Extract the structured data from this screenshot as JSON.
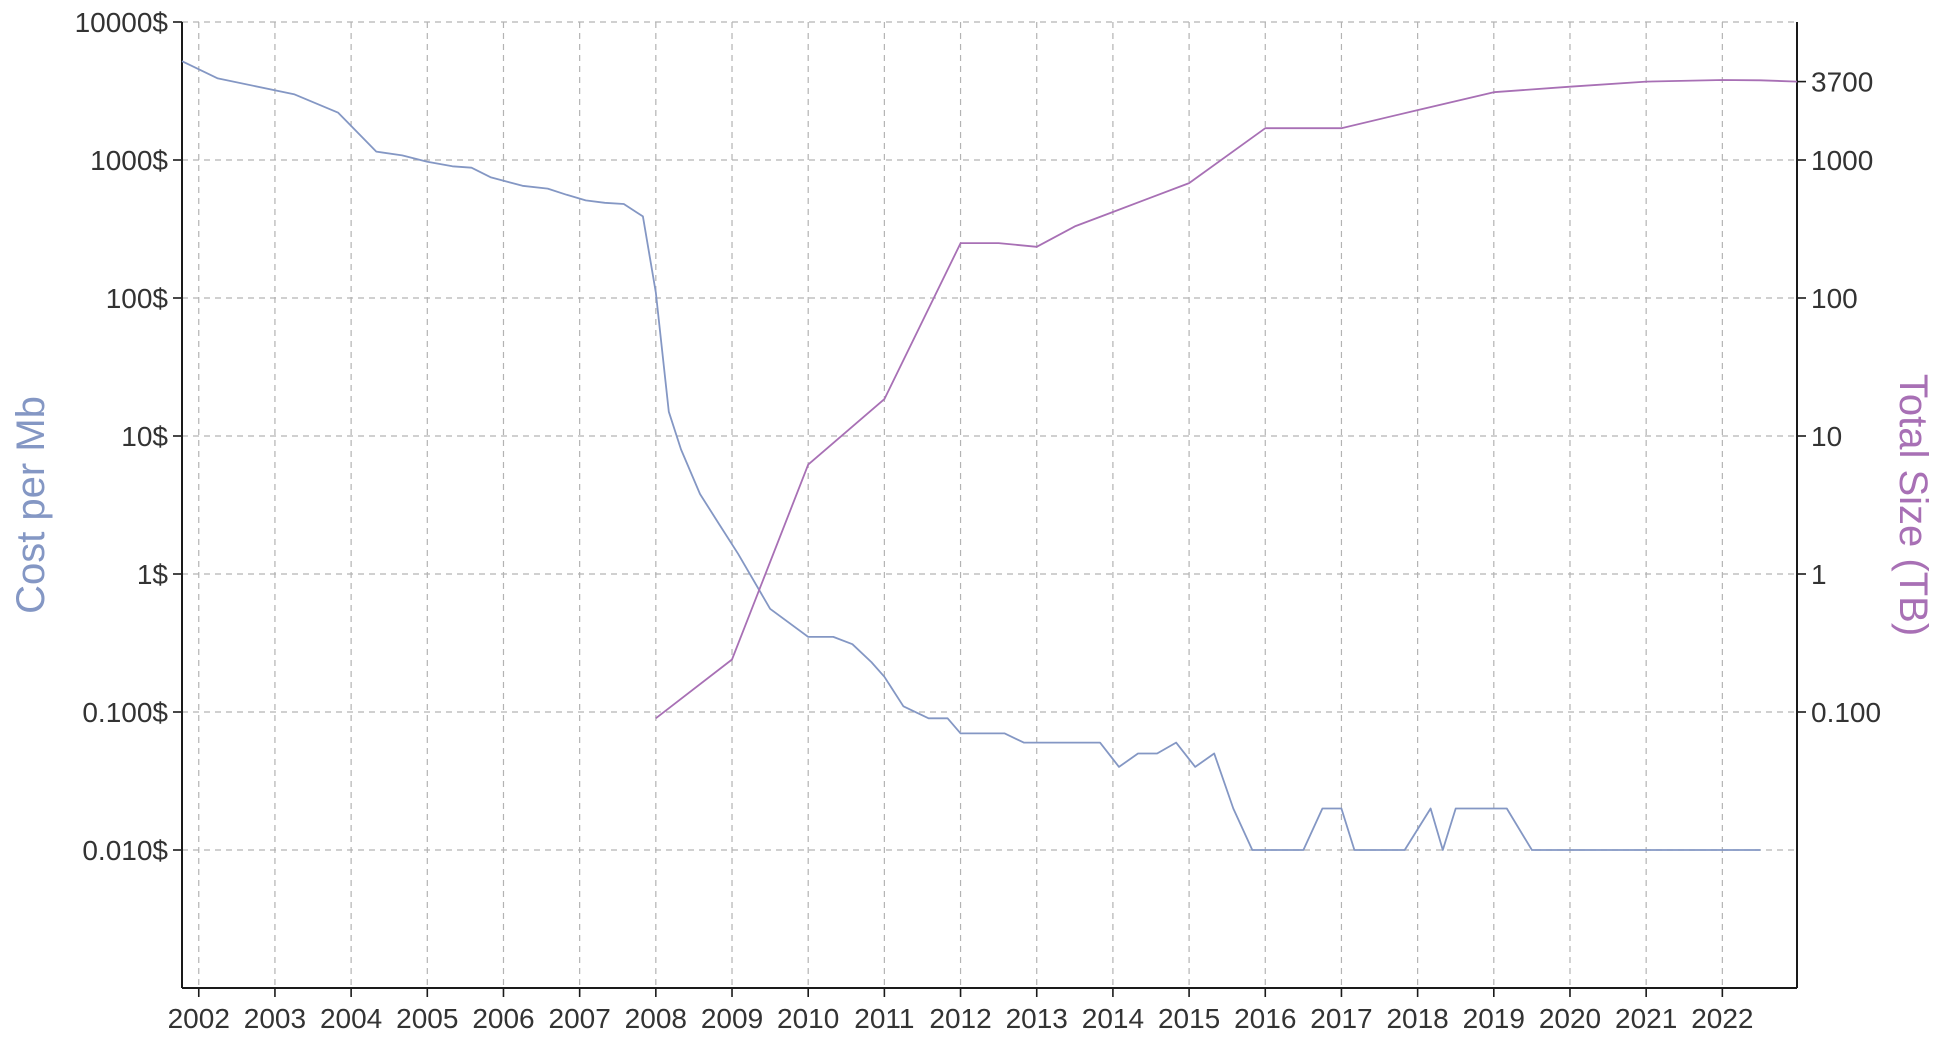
{
  "chart_data": {
    "type": "line",
    "xlabel": "",
    "ylabel_left": "Cost per Mb",
    "ylabel_right": "Total Size (TB)",
    "x_range": [
      2001.78,
      2022.98
    ],
    "x_ticks": [
      2002,
      2003,
      2004,
      2005,
      2006,
      2007,
      2008,
      2009,
      2010,
      2011,
      2012,
      2013,
      2014,
      2015,
      2016,
      2017,
      2018,
      2019,
      2020,
      2021,
      2022
    ],
    "y_left": {
      "scale": "log",
      "range": [
        0.001,
        10000
      ],
      "ticks": [
        10000,
        1000,
        100,
        10,
        1,
        0.1,
        0.01
      ],
      "tick_labels": [
        "10000$",
        "1000$",
        "100$",
        "10$",
        "1$",
        "0.100$",
        "0.010$"
      ]
    },
    "y_right": {
      "scale": "log",
      "range": [
        0.001,
        10000
      ],
      "ticks": [
        3700,
        1000,
        100,
        10,
        1,
        0.1
      ],
      "tick_labels": [
        "3700",
        "1000",
        "100",
        "10",
        "1",
        "0.100"
      ]
    },
    "grid": true,
    "colors": {
      "cost": "#8497c4",
      "size": "#a870b5",
      "axis": "#1a1a1a",
      "grid": "#b3b3b3"
    },
    "series": [
      {
        "name": "Cost per Mb",
        "axis": "left",
        "x": [
          2001.78,
          2002.25,
          2003.25,
          2003.83,
          2004.33,
          2004.67,
          2005.0,
          2005.33,
          2005.58,
          2005.83,
          2006.25,
          2006.58,
          2006.83,
          2007.08,
          2007.33,
          2007.58,
          2007.83,
          2008.0,
          2008.17,
          2008.33,
          2008.58,
          2008.83,
          2009.08,
          2009.5,
          2010.0,
          2010.33,
          2010.58,
          2010.83,
          2011.0,
          2011.25,
          2011.58,
          2011.83,
          2012.0,
          2012.25,
          2012.58,
          2012.83,
          2013.0,
          2013.33,
          2013.83,
          2014.08,
          2014.33,
          2014.58,
          2014.83,
          2015.08,
          2015.33,
          2015.58,
          2015.83,
          2016.0,
          2016.25,
          2016.5,
          2016.75,
          2017.0,
          2017.17,
          2017.5,
          2017.67,
          2017.83,
          2018.17,
          2018.33,
          2018.5,
          2018.67,
          2018.92,
          2019.17,
          2019.5,
          2020.0,
          2021.0,
          2022.0,
          2022.5
        ],
        "values": [
          5200,
          3900,
          3000,
          2200,
          1150,
          1080,
          970,
          900,
          880,
          750,
          650,
          620,
          560,
          510,
          490,
          480,
          390,
          110,
          15,
          8,
          3.8,
          2.3,
          1.4,
          0.56,
          0.35,
          0.35,
          0.31,
          0.23,
          0.18,
          0.11,
          0.09,
          0.09,
          0.07,
          0.07,
          0.07,
          0.06,
          0.06,
          0.06,
          0.06,
          0.04,
          0.05,
          0.05,
          0.06,
          0.04,
          0.05,
          0.02,
          0.01,
          0.01,
          0.01,
          0.01,
          0.02,
          0.02,
          0.01,
          0.01,
          0.01,
          0.01,
          0.02,
          0.01,
          0.02,
          0.02,
          0.02,
          0.02,
          0.01,
          0.01,
          0.01,
          0.01,
          0.01
        ]
      },
      {
        "name": "Total Size (TB)",
        "axis": "right",
        "x": [
          2008.0,
          2009.0,
          2010.0,
          2011.0,
          2012.0,
          2012.5,
          2013.0,
          2013.5,
          2014.0,
          2015.0,
          2016.0,
          2017.0,
          2018.0,
          2019.0,
          2020.0,
          2021.0,
          2022.0,
          2022.5,
          2022.98
        ],
        "values": [
          0.09,
          0.24,
          6.2,
          18.5,
          250,
          250,
          235,
          330,
          420,
          680,
          1700,
          1700,
          2300,
          3100,
          3400,
          3700,
          3800,
          3780,
          3700
        ]
      }
    ]
  }
}
